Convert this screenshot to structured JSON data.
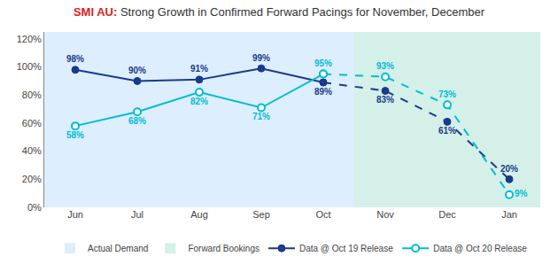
{
  "chart_data": {
    "type": "line",
    "title": [
      {
        "text": "SMI AU:",
        "color": "#e02020"
      },
      {
        "text": " Strong Growth in Confirmed Forward Pacings for November, December",
        "color": "#333333"
      }
    ],
    "categories": [
      "Jun",
      "Jul",
      "Aug",
      "Sep",
      "Oct",
      "Nov",
      "Dec",
      "Jan"
    ],
    "series": [
      {
        "name": "Data @ Oct 19 Release",
        "color": "#1a3a8a",
        "marker": "circle",
        "values": [
          98,
          90,
          91,
          99,
          89,
          83,
          61,
          20
        ],
        "value_labels": [
          "98%",
          "90%",
          "91%",
          "99%",
          "89%",
          "83%",
          "61%",
          "20%"
        ]
      },
      {
        "name": "Data @ Oct 20 Release",
        "color": "#00bcd4",
        "marker": "circle-open",
        "values": [
          58,
          68,
          82,
          71,
          95,
          93,
          73,
          9
        ],
        "value_labels": [
          "58%",
          "68%",
          "82%",
          "71%",
          "95%",
          "93%",
          "73%",
          "9%"
        ]
      }
    ],
    "regions": [
      {
        "name": "Actual Demand",
        "color": "#ddeeff",
        "start": "Jun",
        "end": "Oct",
        "line_style": "solid"
      },
      {
        "name": "Forward Bookings",
        "color": "#d4f0e8",
        "start": "Nov",
        "end": "Jan",
        "line_style": "dashed"
      }
    ],
    "reference_line": {
      "y": 100,
      "color": "#aaaaaa",
      "line_style": "dashed"
    },
    "ylim": [
      0,
      125
    ],
    "yticks": [
      {
        "value": 0,
        "label": "0%"
      },
      {
        "value": 20,
        "label": "20%"
      },
      {
        "value": 40,
        "label": "40%"
      },
      {
        "value": 60,
        "label": "60%"
      },
      {
        "value": 80,
        "label": "80%"
      },
      {
        "value": 100,
        "label": "100%"
      },
      {
        "value": 120,
        "label": "120%"
      }
    ],
    "grid": false,
    "data_labels": true,
    "legend": "bottom"
  }
}
